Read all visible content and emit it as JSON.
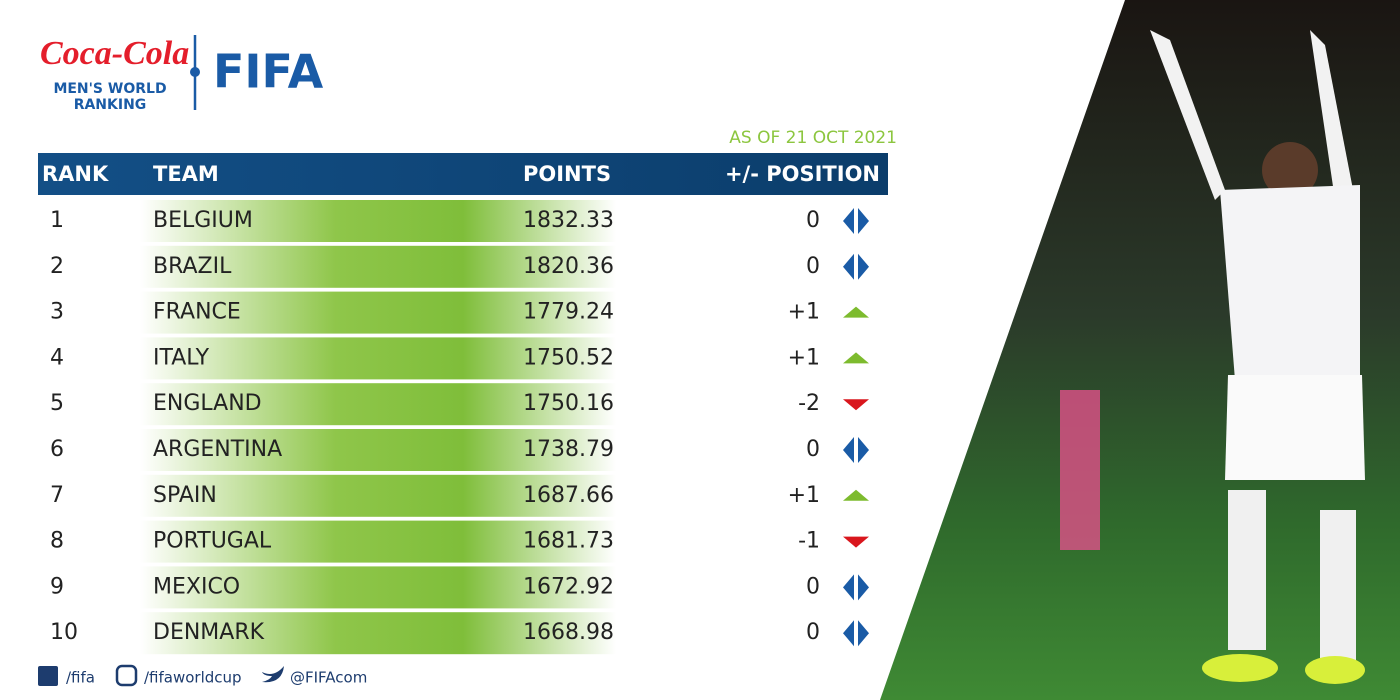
{
  "header": {
    "sponsor": "Coca-Cola",
    "ranking_line1": "MEN'S WORLD",
    "ranking_line2": "RANKING",
    "brand": "FIFA",
    "date": "AS OF 21 OCT 2021"
  },
  "table": {
    "columns": [
      "RANK",
      "TEAM",
      "POINTS",
      "+/- POSITION"
    ],
    "rows": [
      [
        1,
        "BELGIUM",
        "1832.33",
        "0"
      ],
      [
        2,
        "BRAZIL",
        "1820.36",
        "0"
      ],
      [
        3,
        "FRANCE",
        "1779.24",
        "+1"
      ],
      [
        4,
        "ITALY",
        "1750.52",
        "+1"
      ],
      [
        5,
        "ENGLAND",
        "1750.16",
        "-2"
      ],
      [
        6,
        "ARGENTINA",
        "1738.79",
        "0"
      ],
      [
        7,
        "SPAIN",
        "1687.66",
        "+1"
      ],
      [
        8,
        "PORTUGAL",
        "1681.73",
        "-1"
      ],
      [
        9,
        "MEXICO",
        "1672.92",
        "0"
      ],
      [
        10,
        "DENMARK",
        "1668.98",
        "0"
      ]
    ]
  },
  "footer": {
    "facebook": "/fifa",
    "instagram": "/fifaworldcup",
    "twitter": "@FIFAcom"
  }
}
